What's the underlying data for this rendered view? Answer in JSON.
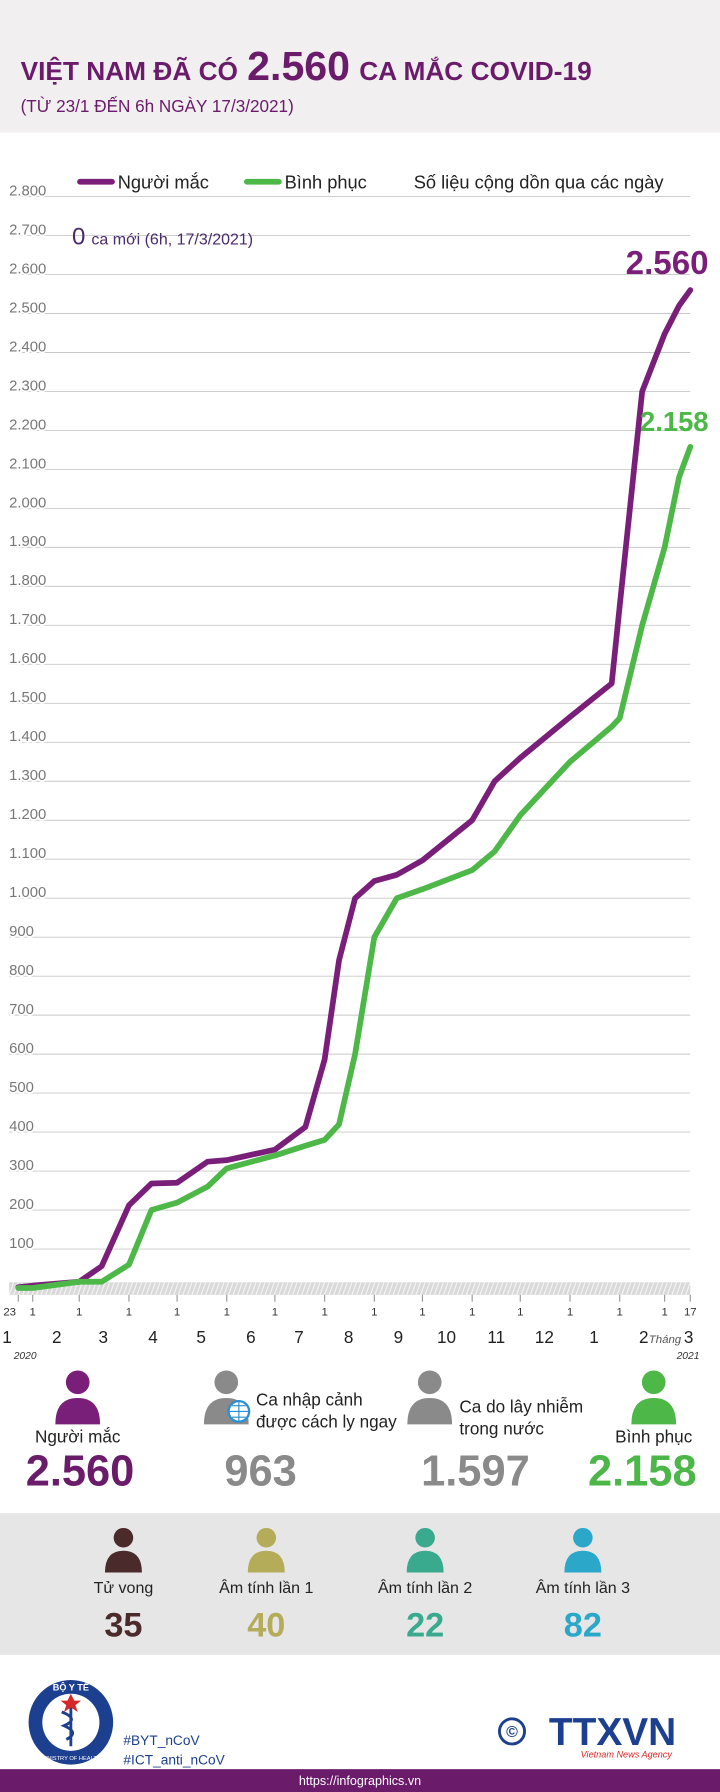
{
  "header": {
    "title_parts": [
      "VIỆT NAM ĐÃ CÓ",
      "2.560",
      "CA MẮC COVID-19"
    ],
    "subtitle": "(TỪ 23/1 ĐẾN 6h NGÀY 17/3/2021)"
  },
  "chart_data": {
    "type": "line",
    "note": "Số liệu cộng dồn qua các ngày",
    "annotation": {
      "number": "0",
      "text": "ca mới (6h, 17/3/2021)"
    },
    "x": [
      "2020-01-23",
      "2020-02-01",
      "2020-03-01",
      "2020-03-15",
      "2020-04-01",
      "2020-04-15",
      "2020-05-01",
      "2020-05-20",
      "2020-06-01",
      "2020-07-01",
      "2020-07-20",
      "2020-08-01",
      "2020-08-10",
      "2020-08-20",
      "2020-09-01",
      "2020-09-15",
      "2020-10-01",
      "2020-11-01",
      "2020-11-15",
      "2020-12-01",
      "2021-01-01",
      "2021-01-27",
      "2021-02-01",
      "2021-02-15",
      "2021-03-01",
      "2021-03-10",
      "2021-03-17"
    ],
    "series": [
      {
        "name": "Người mắc",
        "color": "#7a1f79",
        "end_label": "2.560",
        "values": [
          2,
          6,
          16,
          56,
          212,
          268,
          270,
          324,
          328,
          355,
          413,
          586,
          841,
          1000,
          1044,
          1060,
          1097,
          1200,
          1300,
          1360,
          1465,
          1551,
          1750,
          2300,
          2448,
          2520,
          2560
        ]
      },
      {
        "name": "Bình phục",
        "color": "#4db848",
        "end_label": "2.158",
        "values": [
          0,
          0,
          16,
          16,
          60,
          200,
          219,
          260,
          307,
          340,
          365,
          380,
          420,
          600,
          900,
          1000,
          1023,
          1072,
          1120,
          1213,
          1350,
          1440,
          1462,
          1700,
          1900,
          2080,
          2158
        ]
      }
    ],
    "xlim": [
      "2020-01-23",
      "2021-03-17"
    ],
    "xticks": [
      {
        "value": "2020-01-23",
        "label": "23"
      },
      {
        "value": "2020-02-01",
        "label": "1"
      },
      {
        "value": "2020-03-01",
        "label": "1"
      },
      {
        "value": "2020-04-01",
        "label": "1"
      },
      {
        "value": "2020-05-01",
        "label": "1"
      },
      {
        "value": "2020-06-01",
        "label": "1"
      },
      {
        "value": "2020-07-01",
        "label": "1"
      },
      {
        "value": "2020-08-01",
        "label": "1"
      },
      {
        "value": "2020-09-01",
        "label": "1"
      },
      {
        "value": "2020-10-01",
        "label": "1"
      },
      {
        "value": "2020-11-01",
        "label": "1"
      },
      {
        "value": "2020-12-01",
        "label": "1"
      },
      {
        "value": "2021-01-01",
        "label": "1"
      },
      {
        "value": "2021-02-01",
        "label": "1"
      },
      {
        "value": "2021-03-01",
        "label": "1"
      },
      {
        "value": "2021-03-17",
        "label": "17"
      }
    ],
    "month_labels": [
      {
        "value": "2020-01",
        "label": "1"
      },
      {
        "value": "2020-02",
        "label": "2"
      },
      {
        "value": "2020-03",
        "label": "3"
      },
      {
        "value": "2020-04",
        "label": "4"
      },
      {
        "value": "2020-05",
        "label": "5"
      },
      {
        "value": "2020-06",
        "label": "6"
      },
      {
        "value": "2020-07",
        "label": "7"
      },
      {
        "value": "2020-08",
        "label": "8"
      },
      {
        "value": "2020-09",
        "label": "9"
      },
      {
        "value": "2020-10",
        "label": "10"
      },
      {
        "value": "2020-11",
        "label": "11"
      },
      {
        "value": "2020-12",
        "label": "12"
      },
      {
        "value": "2021-01",
        "label": "1"
      },
      {
        "value": "2021-02",
        "label": "2"
      },
      {
        "value": "2021-03",
        "label": "3"
      }
    ],
    "month_word": "Tháng",
    "years": [
      "2020",
      "2021"
    ],
    "ylim": [
      0,
      2800
    ],
    "yticks": [
      100,
      200,
      300,
      400,
      500,
      600,
      700,
      800,
      900,
      {
        "value": 1000,
        "label": "1.000"
      },
      {
        "value": 1100,
        "label": "1.100"
      },
      {
        "value": 1200,
        "label": "1.200"
      },
      {
        "value": 1300,
        "label": "1.300"
      },
      {
        "value": 1400,
        "label": "1.400"
      },
      {
        "value": 1500,
        "label": "1.500"
      },
      {
        "value": 1600,
        "label": "1.600"
      },
      {
        "value": 1700,
        "label": "1.700"
      },
      {
        "value": 1800,
        "label": "1.800"
      },
      {
        "value": 1900,
        "label": "1.900"
      },
      {
        "value": 2000,
        "label": "2.000"
      },
      {
        "value": 2100,
        "label": "2.100"
      },
      {
        "value": 2200,
        "label": "2.200"
      },
      {
        "value": 2300,
        "label": "2.300"
      },
      {
        "value": 2400,
        "label": "2.400"
      },
      {
        "value": 2500,
        "label": "2.500"
      },
      {
        "value": 2600,
        "label": "2.600"
      },
      {
        "value": 2700,
        "label": "2.700"
      },
      {
        "value": 2800,
        "label": "2.800"
      }
    ],
    "grid": true
  },
  "stats": [
    {
      "label": [
        "Người mắc"
      ],
      "value": "2.560",
      "color": "#6a1b6a",
      "icon": "#7a1f79"
    },
    {
      "label": [
        "Ca nhập cảnh",
        "được cách ly ngay"
      ],
      "value": "963",
      "color": "#8a8a8a",
      "icon": "#8a8a8a"
    },
    {
      "label": [
        "Ca do lây nhiễm",
        "trong nước"
      ],
      "value": "1.597",
      "color": "#8a8a8a",
      "icon": "#8a8a8a"
    },
    {
      "label": [
        "Bình phục"
      ],
      "value": "2.158",
      "color": "#4cb748",
      "icon": "#4db848"
    }
  ],
  "tests": [
    {
      "label": "Tử vong",
      "value": "35",
      "color": "#4a2a2a"
    },
    {
      "label": "Âm tính lần 1",
      "value": "40",
      "color": "#b5ac5a"
    },
    {
      "label": "Âm tính lần 2",
      "value": "22",
      "color": "#3aaa8e"
    },
    {
      "label": "Âm tính lần 3",
      "value": "82",
      "color": "#2aa7c9"
    }
  ],
  "footer": {
    "logo_top": "BỘ Y TẾ",
    "logo_bottom": "MINISTRY OF HEALTH",
    "hashtags": [
      "#BYT_nCoV",
      "#ICT_anti_nCoV"
    ],
    "agency": "TTXVN",
    "agency_sub": "Vietnam News Agency",
    "url": "https://infographics.vn"
  }
}
